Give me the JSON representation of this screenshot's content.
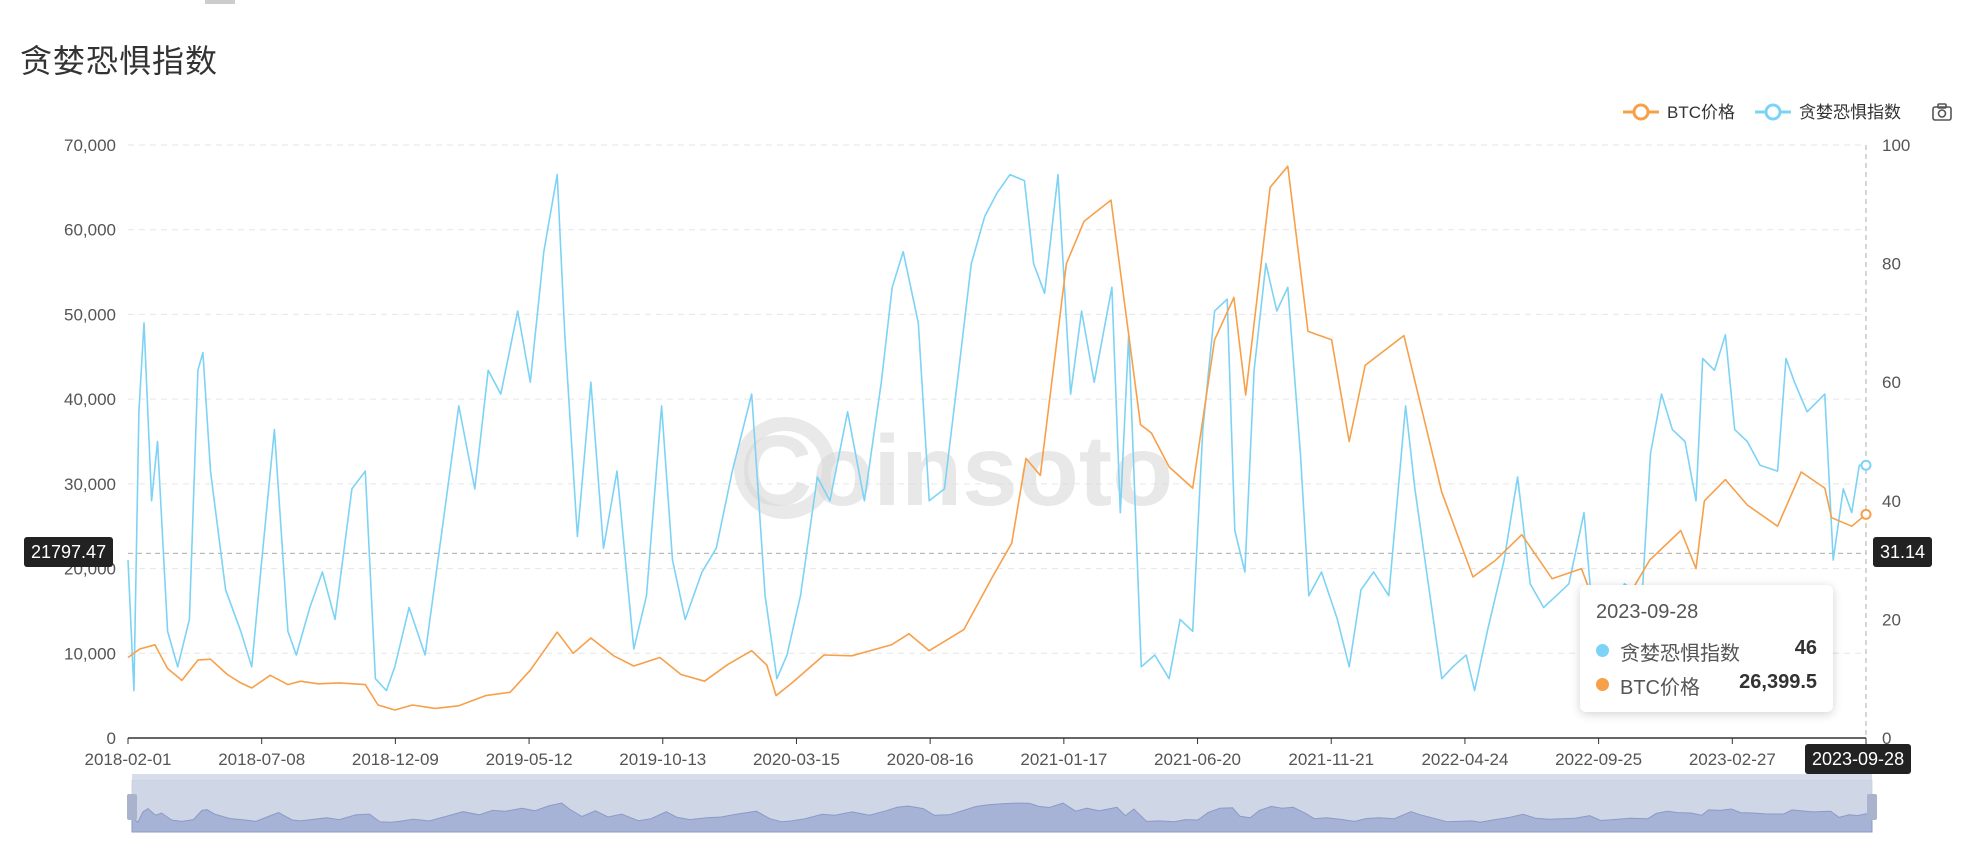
{
  "page": {
    "title": "贪婪恐惧指数"
  },
  "colors": {
    "btc": "#f7a04a",
    "fgi": "#7dd3f5",
    "axis": "#333333",
    "grid": "#e6e6e6",
    "watermark": "#d7d7d7"
  },
  "watermark": "Coinsoto",
  "toolbar": {
    "camera_icon": "camera-icon"
  },
  "legend": [
    {
      "name": "BTC价格",
      "color": "#f7a04a"
    },
    {
      "name": "贪婪恐惧指数",
      "color": "#7dd3f5"
    }
  ],
  "tooltip": {
    "date": "2023-09-28",
    "rows": [
      {
        "label": "贪婪恐惧指数",
        "value": "46",
        "color": "#7dd3f5"
      },
      {
        "label": "BTC价格",
        "value": "26,399.5",
        "color": "#f7a04a"
      }
    ]
  },
  "axis_pointer": {
    "left_label": "21797.47",
    "right_label": "31.14",
    "bottom_label": "2023-09-28"
  },
  "chart_data": {
    "type": "line",
    "x_range": [
      "2018-02-01",
      "2023-09-28"
    ],
    "x_ticks": [
      "2018-02-01",
      "2018-07-08",
      "2018-12-09",
      "2019-05-12",
      "2019-10-13",
      "2020-03-15",
      "2020-08-16",
      "2021-01-17",
      "2021-06-20",
      "2021-11-21",
      "2022-04-24",
      "2022-09-25",
      "2023-02-27",
      "2023-09-28"
    ],
    "y_left": {
      "min": 0,
      "max": 70000,
      "ticks": [
        "0",
        "10,000",
        "20,000",
        "30,000",
        "40,000",
        "50,000",
        "60,000",
        "70,000"
      ]
    },
    "y_right": {
      "min": 0,
      "max": 100,
      "ticks": [
        "0",
        "20",
        "40",
        "60",
        "80",
        "100"
      ]
    },
    "grid": true,
    "legend_position": "top-right",
    "series": [
      {
        "name": "BTC价格",
        "axis": "left",
        "points": [
          [
            "2018-02-01",
            9500
          ],
          [
            "2018-02-15",
            10500
          ],
          [
            "2018-03-05",
            11000
          ],
          [
            "2018-03-20",
            8200
          ],
          [
            "2018-04-06",
            6800
          ],
          [
            "2018-04-25",
            9200
          ],
          [
            "2018-05-10",
            9300
          ],
          [
            "2018-05-30",
            7500
          ],
          [
            "2018-06-15",
            6500
          ],
          [
            "2018-06-28",
            5900
          ],
          [
            "2018-07-20",
            7400
          ],
          [
            "2018-08-10",
            6300
          ],
          [
            "2018-08-25",
            6700
          ],
          [
            "2018-09-15",
            6400
          ],
          [
            "2018-10-10",
            6500
          ],
          [
            "2018-11-10",
            6300
          ],
          [
            "2018-11-25",
            3900
          ],
          [
            "2018-12-15",
            3300
          ],
          [
            "2019-01-05",
            3900
          ],
          [
            "2019-02-01",
            3500
          ],
          [
            "2019-03-01",
            3800
          ],
          [
            "2019-04-02",
            5000
          ],
          [
            "2019-05-01",
            5400
          ],
          [
            "2019-05-25",
            8000
          ],
          [
            "2019-06-26",
            12500
          ],
          [
            "2019-07-15",
            10000
          ],
          [
            "2019-08-05",
            11800
          ],
          [
            "2019-09-01",
            9700
          ],
          [
            "2019-09-25",
            8500
          ],
          [
            "2019-10-26",
            9500
          ],
          [
            "2019-11-20",
            7500
          ],
          [
            "2019-12-18",
            6700
          ],
          [
            "2020-01-15",
            8700
          ],
          [
            "2020-02-12",
            10300
          ],
          [
            "2020-03-01",
            8600
          ],
          [
            "2020-03-12",
            5000
          ],
          [
            "2020-04-01",
            6600
          ],
          [
            "2020-05-08",
            9800
          ],
          [
            "2020-06-10",
            9700
          ],
          [
            "2020-07-27",
            11000
          ],
          [
            "2020-08-17",
            12300
          ],
          [
            "2020-09-10",
            10300
          ],
          [
            "2020-10-21",
            12800
          ],
          [
            "2020-11-24",
            19000
          ],
          [
            "2020-12-17",
            23000
          ],
          [
            "2021-01-03",
            33000
          ],
          [
            "2021-01-20",
            31000
          ],
          [
            "2021-02-20",
            56000
          ],
          [
            "2021-03-13",
            61000
          ],
          [
            "2021-04-14",
            63500
          ],
          [
            "2021-05-19",
            37000
          ],
          [
            "2021-06-01",
            36000
          ],
          [
            "2021-06-22",
            32000
          ],
          [
            "2021-07-20",
            29500
          ],
          [
            "2021-08-15",
            47000
          ],
          [
            "2021-09-07",
            52000
          ],
          [
            "2021-09-21",
            40500
          ],
          [
            "2021-10-20",
            65000
          ],
          [
            "2021-11-10",
            67500
          ],
          [
            "2021-12-04",
            48000
          ],
          [
            "2022-01-01",
            47000
          ],
          [
            "2022-01-22",
            35000
          ],
          [
            "2022-02-10",
            44000
          ],
          [
            "2022-03-28",
            47500
          ],
          [
            "2022-05-12",
            29000
          ],
          [
            "2022-06-18",
            19000
          ],
          [
            "2022-07-15",
            21000
          ],
          [
            "2022-08-15",
            24000
          ],
          [
            "2022-09-20",
            18800
          ],
          [
            "2022-10-25",
            20000
          ],
          [
            "2022-11-09",
            16000
          ],
          [
            "2022-12-20",
            16800
          ],
          [
            "2023-01-14",
            21000
          ],
          [
            "2023-02-20",
            24500
          ],
          [
            "2023-03-10",
            20000
          ],
          [
            "2023-03-20",
            28000
          ],
          [
            "2023-04-14",
            30500
          ],
          [
            "2023-05-10",
            27500
          ],
          [
            "2023-06-15",
            25000
          ],
          [
            "2023-07-13",
            31400
          ],
          [
            "2023-08-10",
            29500
          ],
          [
            "2023-08-18",
            26000
          ],
          [
            "2023-09-11",
            25000
          ],
          [
            "2023-09-28",
            26399.5
          ]
        ]
      },
      {
        "name": "贪婪恐惧指数",
        "axis": "right",
        "points": [
          [
            "2018-02-01",
            30
          ],
          [
            "2018-02-08",
            8
          ],
          [
            "2018-02-14",
            55
          ],
          [
            "2018-02-20",
            70
          ],
          [
            "2018-03-01",
            40
          ],
          [
            "2018-03-08",
            50
          ],
          [
            "2018-03-20",
            18
          ],
          [
            "2018-04-01",
            12
          ],
          [
            "2018-04-15",
            20
          ],
          [
            "2018-04-25",
            62
          ],
          [
            "2018-05-01",
            65
          ],
          [
            "2018-05-10",
            45
          ],
          [
            "2018-05-28",
            25
          ],
          [
            "2018-06-15",
            18
          ],
          [
            "2018-06-28",
            12
          ],
          [
            "2018-07-10",
            30
          ],
          [
            "2018-07-25",
            52
          ],
          [
            "2018-08-10",
            18
          ],
          [
            "2018-08-20",
            14
          ],
          [
            "2018-09-05",
            22
          ],
          [
            "2018-09-20",
            28
          ],
          [
            "2018-10-05",
            20
          ],
          [
            "2018-10-25",
            42
          ],
          [
            "2018-11-10",
            45
          ],
          [
            "2018-11-22",
            10
          ],
          [
            "2018-12-05",
            8
          ],
          [
            "2018-12-15",
            12
          ],
          [
            "2019-01-01",
            22
          ],
          [
            "2019-01-20",
            14
          ],
          [
            "2019-02-10",
            36
          ],
          [
            "2019-03-01",
            56
          ],
          [
            "2019-03-20",
            42
          ],
          [
            "2019-04-05",
            62
          ],
          [
            "2019-04-20",
            58
          ],
          [
            "2019-05-10",
            72
          ],
          [
            "2019-05-25",
            60
          ],
          [
            "2019-06-10",
            82
          ],
          [
            "2019-06-26",
            95
          ],
          [
            "2019-07-05",
            68
          ],
          [
            "2019-07-20",
            34
          ],
          [
            "2019-08-05",
            60
          ],
          [
            "2019-08-20",
            32
          ],
          [
            "2019-09-05",
            45
          ],
          [
            "2019-09-25",
            15
          ],
          [
            "2019-10-10",
            24
          ],
          [
            "2019-10-28",
            56
          ],
          [
            "2019-11-10",
            30
          ],
          [
            "2019-11-25",
            20
          ],
          [
            "2019-12-15",
            28
          ],
          [
            "2020-01-01",
            32
          ],
          [
            "2020-01-20",
            45
          ],
          [
            "2020-02-12",
            58
          ],
          [
            "2020-02-28",
            24
          ],
          [
            "2020-03-13",
            10
          ],
          [
            "2020-03-25",
            14
          ],
          [
            "2020-04-10",
            24
          ],
          [
            "2020-04-30",
            44
          ],
          [
            "2020-05-15",
            40
          ],
          [
            "2020-06-05",
            55
          ],
          [
            "2020-06-25",
            40
          ],
          [
            "2020-07-15",
            60
          ],
          [
            "2020-07-28",
            76
          ],
          [
            "2020-08-10",
            82
          ],
          [
            "2020-08-28",
            70
          ],
          [
            "2020-09-10",
            40
          ],
          [
            "2020-09-28",
            42
          ],
          [
            "2020-10-15",
            62
          ],
          [
            "2020-10-30",
            80
          ],
          [
            "2020-11-15",
            88
          ],
          [
            "2020-11-30",
            92
          ],
          [
            "2020-12-15",
            95
          ],
          [
            "2021-01-01",
            94
          ],
          [
            "2021-01-12",
            80
          ],
          [
            "2021-01-25",
            75
          ],
          [
            "2021-02-10",
            95
          ],
          [
            "2021-02-25",
            58
          ],
          [
            "2021-03-10",
            72
          ],
          [
            "2021-03-25",
            60
          ],
          [
            "2021-04-15",
            76
          ],
          [
            "2021-04-25",
            38
          ],
          [
            "2021-05-05",
            68
          ],
          [
            "2021-05-20",
            12
          ],
          [
            "2021-06-05",
            14
          ],
          [
            "2021-06-22",
            10
          ],
          [
            "2021-07-05",
            20
          ],
          [
            "2021-07-20",
            18
          ],
          [
            "2021-08-01",
            52
          ],
          [
            "2021-08-15",
            72
          ],
          [
            "2021-08-30",
            74
          ],
          [
            "2021-09-08",
            35
          ],
          [
            "2021-09-20",
            28
          ],
          [
            "2021-10-01",
            62
          ],
          [
            "2021-10-15",
            80
          ],
          [
            "2021-10-28",
            72
          ],
          [
            "2021-11-10",
            76
          ],
          [
            "2021-11-25",
            48
          ],
          [
            "2021-12-05",
            24
          ],
          [
            "2021-12-20",
            28
          ],
          [
            "2022-01-08",
            20
          ],
          [
            "2022-01-22",
            12
          ],
          [
            "2022-02-05",
            25
          ],
          [
            "2022-02-20",
            28
          ],
          [
            "2022-03-10",
            24
          ],
          [
            "2022-03-30",
            56
          ],
          [
            "2022-04-10",
            42
          ],
          [
            "2022-04-28",
            24
          ],
          [
            "2022-05-12",
            10
          ],
          [
            "2022-05-25",
            12
          ],
          [
            "2022-06-10",
            14
          ],
          [
            "2022-06-20",
            8
          ],
          [
            "2022-07-05",
            18
          ],
          [
            "2022-07-25",
            30
          ],
          [
            "2022-08-10",
            44
          ],
          [
            "2022-08-25",
            26
          ],
          [
            "2022-09-10",
            22
          ],
          [
            "2022-09-25",
            24
          ],
          [
            "2022-10-10",
            26
          ],
          [
            "2022-10-28",
            38
          ],
          [
            "2022-11-10",
            16
          ],
          [
            "2022-11-25",
            20
          ],
          [
            "2022-12-15",
            26
          ],
          [
            "2023-01-05",
            24
          ],
          [
            "2023-01-15",
            48
          ],
          [
            "2023-01-28",
            58
          ],
          [
            "2023-02-10",
            52
          ],
          [
            "2023-02-25",
            50
          ],
          [
            "2023-03-10",
            40
          ],
          [
            "2023-03-18",
            64
          ],
          [
            "2023-04-01",
            62
          ],
          [
            "2023-04-14",
            68
          ],
          [
            "2023-04-25",
            52
          ],
          [
            "2023-05-10",
            50
          ],
          [
            "2023-05-25",
            46
          ],
          [
            "2023-06-15",
            45
          ],
          [
            "2023-06-25",
            64
          ],
          [
            "2023-07-05",
            60
          ],
          [
            "2023-07-20",
            55
          ],
          [
            "2023-08-10",
            58
          ],
          [
            "2023-08-20",
            30
          ],
          [
            "2023-09-01",
            42
          ],
          [
            "2023-09-11",
            38
          ],
          [
            "2023-09-20",
            46
          ],
          [
            "2023-09-28",
            46
          ]
        ]
      }
    ]
  }
}
